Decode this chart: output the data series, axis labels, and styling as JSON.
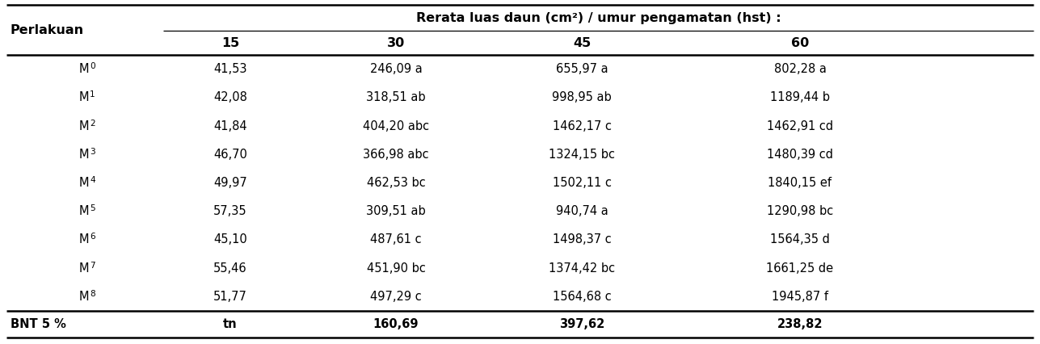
{
  "header_main": "Rerata luas daun (cm²) / umur pengamatan (hst) :",
  "col_header_1": "Perlakuan",
  "col_headers": [
    "15",
    "30",
    "45",
    "60"
  ],
  "rows": [
    {
      "label": "M",
      "sub": "0",
      "vals": [
        "41,53",
        "246,09 a",
        "655,97 a",
        "802,28 a"
      ]
    },
    {
      "label": "M",
      "sub": "1",
      "vals": [
        "42,08",
        "318,51 ab",
        "998,95 ab",
        "1189,44 b"
      ]
    },
    {
      "label": "M",
      "sub": "2",
      "vals": [
        "41,84",
        "404,20 abc",
        "1462,17 c",
        "1462,91 cd"
      ]
    },
    {
      "label": "M",
      "sub": "3",
      "vals": [
        "46,70",
        "366,98 abc",
        "1324,15 bc",
        "1480,39 cd"
      ]
    },
    {
      "label": "M",
      "sub": "4",
      "vals": [
        "49,97",
        "462,53 bc",
        "1502,11 c",
        "1840,15 ef"
      ]
    },
    {
      "label": "M",
      "sub": "5",
      "vals": [
        "57,35",
        "309,51 ab",
        "940,74 a",
        "1290,98 bc"
      ]
    },
    {
      "label": "M",
      "sub": "6",
      "vals": [
        "45,10",
        "487,61 c",
        "1498,37 c",
        "1564,35 d"
      ]
    },
    {
      "label": "M",
      "sub": "7",
      "vals": [
        "55,46",
        "451,90 bc",
        "1374,42 bc",
        "1661,25 de"
      ]
    },
    {
      "label": "M",
      "sub": "8",
      "vals": [
        "51,77",
        "497,29 c",
        "1564,68 c",
        "1945,87 f"
      ]
    }
  ],
  "footer_label": "BNT 5 %",
  "footer_vals": [
    "tn",
    "160,69",
    "397,62",
    "238,82"
  ],
  "bg_color": "#ffffff",
  "text_color": "#000000",
  "font_size": 10.5,
  "header_font_size": 11.5,
  "line_thick": 1.8,
  "line_thin": 0.9
}
